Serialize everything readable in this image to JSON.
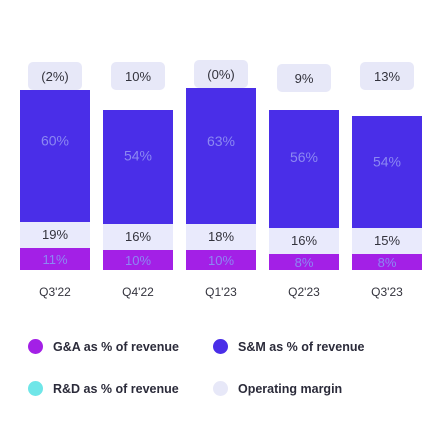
{
  "chart_data": {
    "type": "bar",
    "stacked": true,
    "categories": [
      "Q3'22",
      "Q4'22",
      "Q1'23",
      "Q2'23",
      "Q3'23"
    ],
    "series": [
      {
        "name": "G&A as % of revenue",
        "color": "#a320e6",
        "values": [
          11,
          10,
          10,
          8,
          8
        ],
        "labels": [
          "11%",
          "10%",
          "10%",
          "8%",
          "8%"
        ]
      },
      {
        "name": "R&D as % of revenue",
        "color": "#6fe6e8",
        "values": [
          19,
          16,
          18,
          16,
          15
        ],
        "labels": [
          "19%",
          "16%",
          "18%",
          "16%",
          "15%"
        ]
      },
      {
        "name": "S&M as % of revenue",
        "color": "#4a2ee8",
        "values": [
          60,
          54,
          63,
          56,
          54
        ],
        "labels": [
          "60%",
          "54%",
          "63%",
          "56%",
          "54%"
        ]
      },
      {
        "name": "Operating margin",
        "color": "#e7e8f8",
        "values": [
          -2,
          10,
          0,
          9,
          13
        ],
        "labels": [
          "(2%)",
          "10%",
          "(0%)",
          "9%",
          "13%"
        ]
      }
    ],
    "legend_position": "bottom",
    "grid": false,
    "colors": {
      "label_light": "#8c88f2",
      "tick_text": "#33333d"
    }
  },
  "legend": {
    "items": [
      {
        "label": "G&A as % of revenue",
        "color": "#a320e6"
      },
      {
        "label": "S&M as % of revenue",
        "color": "#4a2ee8"
      },
      {
        "label": "R&D as % of revenue",
        "color": "#6fe6e8"
      },
      {
        "label": "Operating margin",
        "color": "#e7e8f8"
      }
    ]
  }
}
